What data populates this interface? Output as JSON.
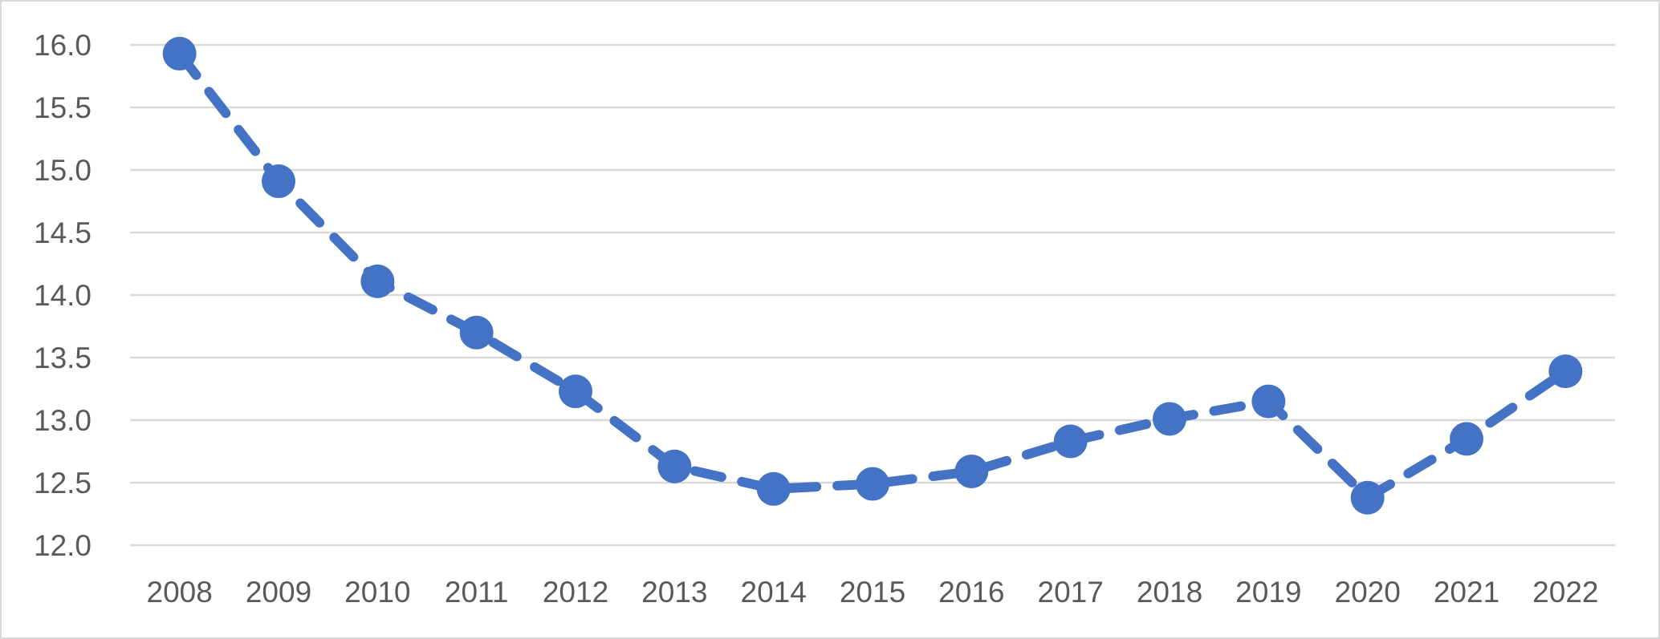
{
  "chart_data": {
    "type": "line",
    "title": "",
    "xlabel": "",
    "ylabel": "",
    "categories": [
      "2008",
      "2009",
      "2010",
      "2011",
      "2012",
      "2013",
      "2014",
      "2015",
      "2016",
      "2017",
      "2018",
      "2019",
      "2020",
      "2021",
      "2022"
    ],
    "series": [
      {
        "values": [
          15.93,
          14.91,
          14.11,
          13.7,
          13.23,
          12.63,
          12.45,
          12.49,
          12.59,
          12.83,
          13.01,
          13.15,
          12.38,
          12.85,
          13.39
        ],
        "color": "#4472c4",
        "line_style": "dashed",
        "marker": "circle"
      }
    ],
    "ylim": [
      12.0,
      16.0
    ],
    "y_ticks": [
      "12.0",
      "12.5",
      "13.0",
      "13.5",
      "14.0",
      "14.5",
      "15.0",
      "15.5",
      "16.0"
    ],
    "grid": "horizontal",
    "legend": "none",
    "colors": {
      "series": "#4472c4",
      "gridline": "#d9d9d9",
      "tick_text": "#595959",
      "frame": "#d9d9d9"
    }
  }
}
